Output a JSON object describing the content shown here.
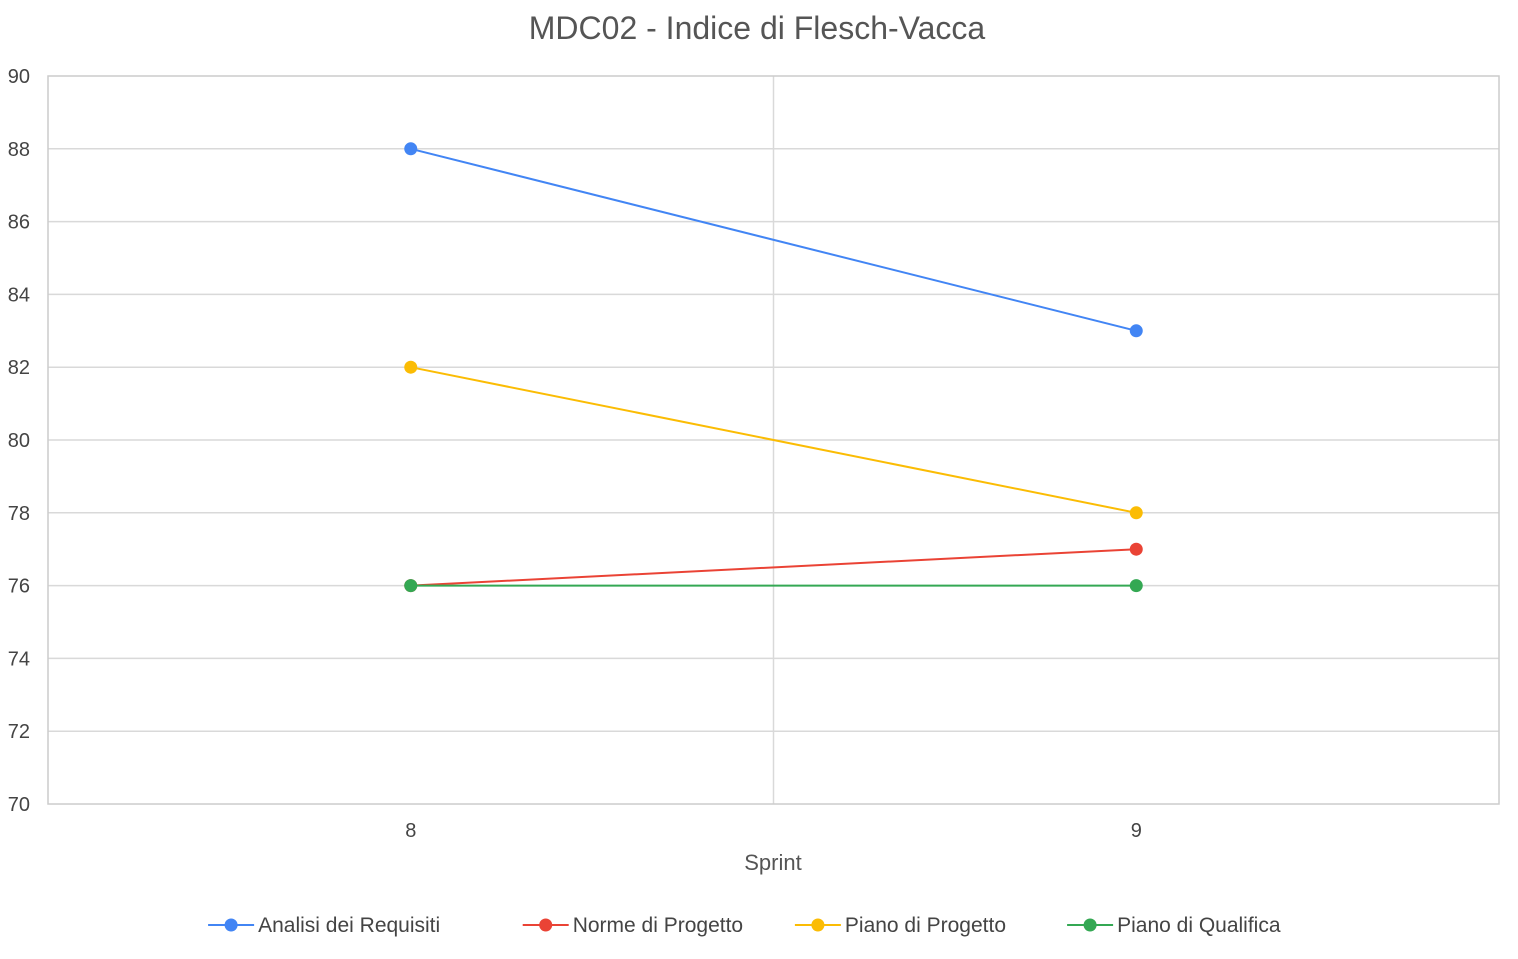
{
  "chart_data": {
    "type": "line",
    "title": "MDC02 - Indice di Flesch-Vacca",
    "xlabel": "Sprint",
    "ylabel": "",
    "categories": [
      "8",
      "9"
    ],
    "ylim": [
      70,
      90
    ],
    "yticks": [
      70,
      72,
      74,
      76,
      78,
      80,
      82,
      84,
      86,
      88,
      90
    ],
    "grid": true,
    "legend_position": "bottom",
    "series": [
      {
        "name": "Analisi dei Requisiti",
        "color": "#4285F4",
        "values": [
          88,
          83
        ]
      },
      {
        "name": "Norme di Progetto",
        "color": "#EA4335",
        "values": [
          76,
          77
        ]
      },
      {
        "name": "Piano di Progetto",
        "color": "#FBBC04",
        "values": [
          82,
          78
        ]
      },
      {
        "name": "Piano di Qualifica",
        "color": "#34A853",
        "values": [
          76,
          76
        ]
      }
    ]
  }
}
